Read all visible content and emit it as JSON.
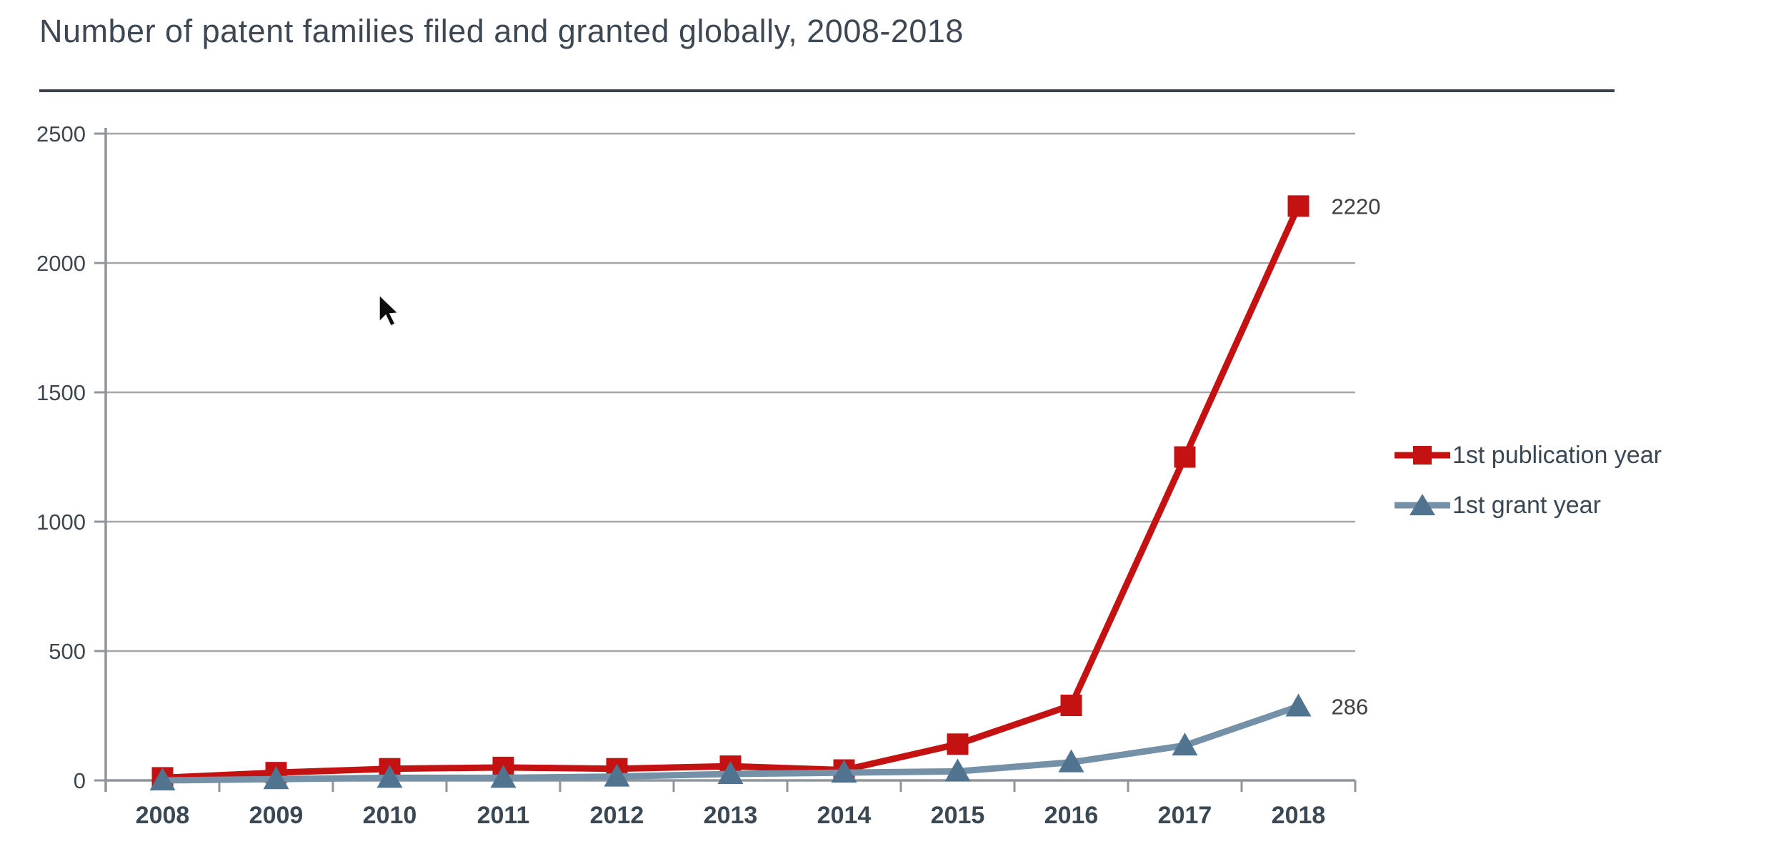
{
  "page": {
    "title": "Number of patent families filed and granted globally, 2008-2018"
  },
  "chart_data": {
    "type": "line",
    "title": "Number of patent families filed and granted globally, 2008-2018",
    "categories": [
      "2008",
      "2009",
      "2010",
      "2011",
      "2012",
      "2013",
      "2014",
      "2015",
      "2016",
      "2017",
      "2018"
    ],
    "series": [
      {
        "name": "1st publication year",
        "marker": "square",
        "color": "#c41212",
        "marker_color": "#c41212",
        "values": [
          10,
          30,
          45,
          50,
          45,
          55,
          40,
          140,
          290,
          1250,
          2220
        ],
        "end_label": "2220"
      },
      {
        "name": "1st grant year",
        "marker": "triangle",
        "color": "#7491a7",
        "marker_color": "#50748f",
        "values": [
          0,
          5,
          10,
          10,
          15,
          25,
          30,
          35,
          70,
          135,
          286
        ],
        "end_label": "286"
      }
    ],
    "xlabel": "",
    "ylabel": "",
    "ylim": [
      0,
      2500
    ],
    "yticks": [
      0,
      500,
      1000,
      1500,
      2000,
      2500
    ],
    "grid": true,
    "legend_position": "right",
    "colors": {
      "axis": "#8f959b",
      "grid": "#a6a6a6",
      "y_tick_label": "#3d4750",
      "x_tick_label": "#3a4854",
      "data_label": "#3f3f3f",
      "title": "#3e4852",
      "title_rule": "#3a434b"
    }
  }
}
